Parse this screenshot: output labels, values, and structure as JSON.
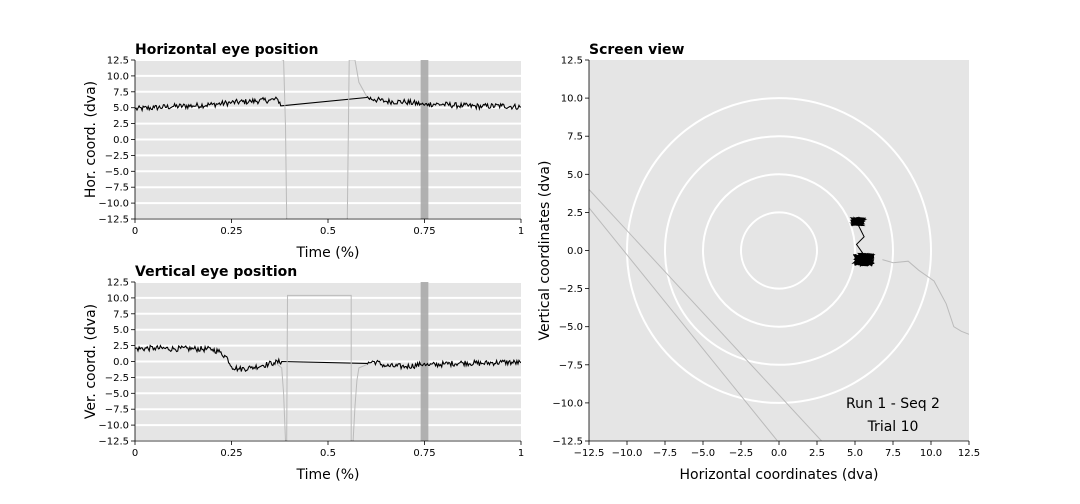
{
  "chart_data": [
    {
      "type": "line",
      "title": "Horizontal eye position",
      "xlabel": "Time (%)",
      "ylabel": "Hor. coord. (dva)",
      "xlim": [
        0,
        1
      ],
      "ylim": [
        -12.5,
        12.5
      ],
      "x_ticks": [
        "0",
        "0.25",
        "0.5",
        "0.75",
        "1"
      ],
      "y_ticks": [
        "12.5",
        "10.0",
        "7.5",
        "5.0",
        "2.5",
        "0.0",
        "−2.5",
        "−5.0",
        "−7.5",
        "−10.0",
        "−12.5"
      ],
      "grid": true,
      "highlight_band": [
        0.74,
        0.76
      ],
      "series": [
        {
          "role": "filtered gaze",
          "color": "#000000",
          "x": [
            0,
            0.05,
            0.1,
            0.15,
            0.2,
            0.25,
            0.3,
            0.35,
            0.37,
            0.38,
            0.6,
            0.62,
            0.65,
            0.7,
            0.74,
            0.75,
            0.76,
            0.8,
            0.85,
            0.9,
            0.95,
            1.0
          ],
          "y": [
            4.8,
            5.0,
            5.2,
            5.3,
            5.5,
            5.8,
            6.0,
            6.2,
            6.3,
            5.3,
            6.6,
            6.3,
            6.0,
            5.9,
            5.6,
            5.4,
            5.6,
            5.5,
            5.3,
            5.2,
            5.3,
            5.1
          ]
        },
        {
          "role": "raw gaze",
          "color": "#bbbbbb",
          "x": [
            0.38,
            0.385,
            0.39,
            0.393,
            0.395,
            0.55,
            0.555,
            0.56,
            0.57,
            0.58,
            0.6
          ],
          "y": [
            12.5,
            12.5,
            2.0,
            -12.5,
            -12.5,
            -12.5,
            12.5,
            12.5,
            12.5,
            9.0,
            6.8
          ]
        }
      ]
    },
    {
      "type": "line",
      "title": "Vertical eye position",
      "xlabel": "Time (%)",
      "ylabel": "Ver. coord. (dva)",
      "xlim": [
        0,
        1
      ],
      "ylim": [
        -12.5,
        12.5
      ],
      "x_ticks": [
        "0",
        "0.25",
        "0.5",
        "0.75",
        "1"
      ],
      "y_ticks": [
        "12.5",
        "10.0",
        "7.5",
        "5.0",
        "2.5",
        "0.0",
        "−2.5",
        "−5.0",
        "−7.5",
        "−10.0",
        "−12.5"
      ],
      "grid": true,
      "highlight_band": [
        0.74,
        0.76
      ],
      "series": [
        {
          "role": "filtered gaze",
          "color": "#000000",
          "x": [
            0,
            0.05,
            0.1,
            0.15,
            0.2,
            0.22,
            0.24,
            0.25,
            0.27,
            0.3,
            0.33,
            0.36,
            0.38,
            0.6,
            0.62,
            0.65,
            0.7,
            0.74,
            0.75,
            0.76,
            0.8,
            0.85,
            0.9,
            0.95,
            1.0
          ],
          "y": [
            2.0,
            2.1,
            2.0,
            2.0,
            1.9,
            1.5,
            0.5,
            -0.8,
            -1.2,
            -1.0,
            -0.6,
            -0.2,
            0.0,
            -0.3,
            0.0,
            -0.7,
            -0.8,
            -0.5,
            -0.3,
            -0.6,
            -0.4,
            -0.2,
            -0.3,
            -0.1,
            -0.2
          ]
        },
        {
          "role": "raw gaze",
          "color": "#bbbbbb",
          "x": [
            0.37,
            0.38,
            0.385,
            0.39,
            0.393,
            0.395,
            0.395,
            0.56,
            0.56,
            0.565,
            0.57,
            0.575,
            0.58,
            0.6
          ],
          "y": [
            -0.5,
            -1.0,
            -5.0,
            -12.5,
            -12.5,
            10.4,
            10.4,
            10.4,
            -12.5,
            -12.5,
            -7.0,
            -3.0,
            -1.0,
            -0.5
          ]
        }
      ]
    },
    {
      "type": "scatter",
      "title": "Screen view",
      "xlabel": "Horizontal coordinates (dva)",
      "ylabel": "Vertical coordinates (dva)",
      "xlim": [
        -12.5,
        12.5
      ],
      "ylim": [
        -12.5,
        12.5
      ],
      "x_ticks": [
        "−12.5",
        "−10.0",
        "−7.5",
        "−5.0",
        "−2.5",
        "0.0",
        "2.5",
        "5.0",
        "7.5",
        "10.0",
        "12.5"
      ],
      "y_ticks": [
        "12.5",
        "10.0",
        "7.5",
        "5.0",
        "2.5",
        "0.0",
        "−2.5",
        "−5.0",
        "−7.5",
        "−10.0",
        "−12.5"
      ],
      "target_circle_radii": [
        2.5,
        5.0,
        7.5,
        10.0
      ],
      "annotations": [
        "Run 1 - Seq 2",
        "Trial 10"
      ],
      "series": [
        {
          "role": "fixation cluster 1",
          "color": "#000000",
          "center": [
            5.2,
            1.9
          ],
          "spread": [
            0.9,
            0.5
          ]
        },
        {
          "role": "fixation cluster 2",
          "color": "#000000",
          "center": [
            5.6,
            -0.6
          ],
          "spread": [
            1.4,
            0.8
          ]
        },
        {
          "role": "raw gaze trace",
          "color": "#bbbbbb",
          "x": [
            6.8,
            7.5,
            8.5,
            9.2,
            10.2,
            11.0,
            11.5,
            12.0,
            12.5
          ],
          "y": [
            -0.6,
            -0.8,
            -0.7,
            -1.3,
            -2.0,
            -3.5,
            -5.0,
            -5.3,
            -5.5
          ]
        },
        {
          "role": "raw gaze diagonal 1",
          "color": "#bbbbbb",
          "x": [
            -12.5,
            2.8
          ],
          "y": [
            4.0,
            -12.5
          ]
        },
        {
          "role": "raw gaze diagonal 2",
          "color": "#bbbbbb",
          "x": [
            -12.5,
            -0.1
          ],
          "y": [
            2.8,
            -12.5
          ]
        }
      ]
    }
  ]
}
